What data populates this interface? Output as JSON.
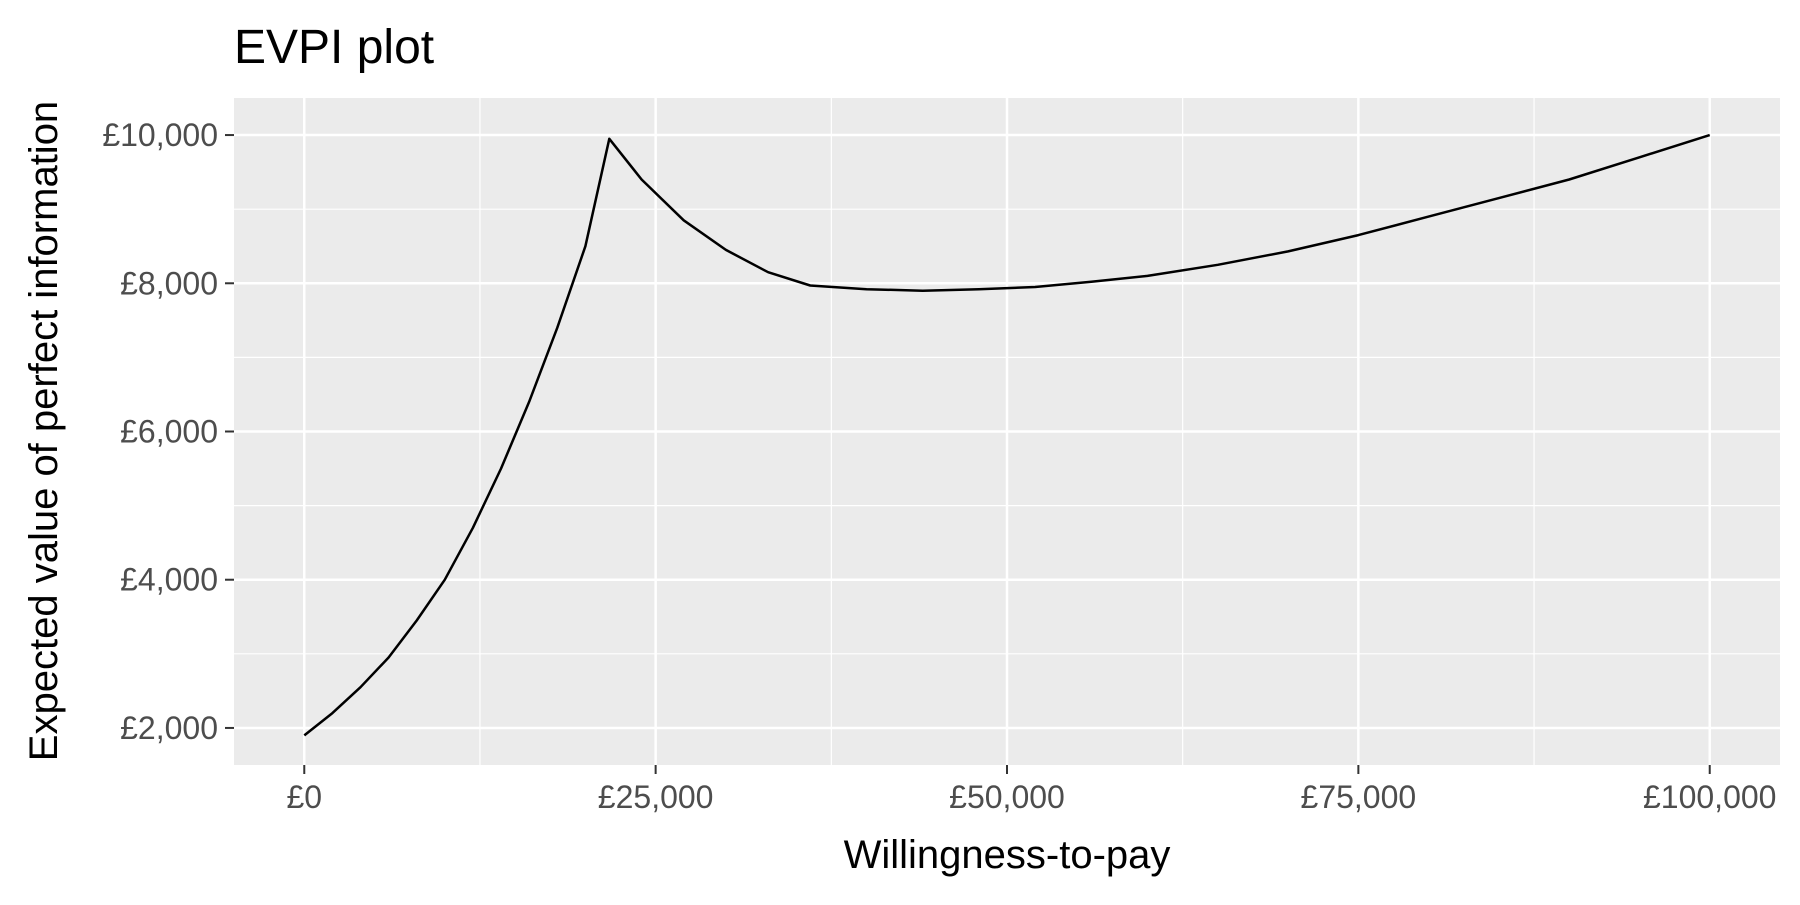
{
  "chart_data": {
    "type": "line",
    "title": "EVPI plot",
    "xlabel": "Willingness-to-pay",
    "ylabel": "Expected value of perfect information",
    "xlim": [
      -5000,
      105000
    ],
    "ylim": [
      1500,
      10500
    ],
    "x_ticks": [
      {
        "value": 0,
        "label": "£0"
      },
      {
        "value": 25000,
        "label": "£25,000"
      },
      {
        "value": 50000,
        "label": "£50,000"
      },
      {
        "value": 75000,
        "label": "£75,000"
      },
      {
        "value": 100000,
        "label": "£100,000"
      }
    ],
    "y_ticks": [
      {
        "value": 2000,
        "label": "£2,000"
      },
      {
        "value": 4000,
        "label": "£4,000"
      },
      {
        "value": 6000,
        "label": "£6,000"
      },
      {
        "value": 8000,
        "label": "£8,000"
      },
      {
        "value": 10000,
        "label": "£10,000"
      }
    ],
    "x_minor": [
      12500,
      37500,
      62500,
      87500
    ],
    "y_minor": [
      3000,
      5000,
      7000,
      9000
    ],
    "grid": true,
    "colors": {
      "panel": "#ebebeb",
      "grid": "#ffffff",
      "line": "#000000"
    },
    "series": [
      {
        "x": [
          0,
          2000,
          4000,
          6000,
          8000,
          10000,
          12000,
          14000,
          16000,
          18000,
          20000,
          21700,
          24000,
          27000,
          30000,
          33000,
          36000,
          40000,
          44000,
          48000,
          52000,
          56000,
          60000,
          65000,
          70000,
          75000,
          80000,
          85000,
          90000,
          95000,
          100000
        ],
        "y": [
          1900,
          2200,
          2550,
          2950,
          3450,
          4000,
          4700,
          5500,
          6400,
          7400,
          8500,
          9950,
          9400,
          8850,
          8450,
          8150,
          7970,
          7920,
          7900,
          7920,
          7950,
          8020,
          8100,
          8250,
          8430,
          8650,
          8900,
          9150,
          9400,
          9700,
          10000
        ]
      }
    ]
  }
}
